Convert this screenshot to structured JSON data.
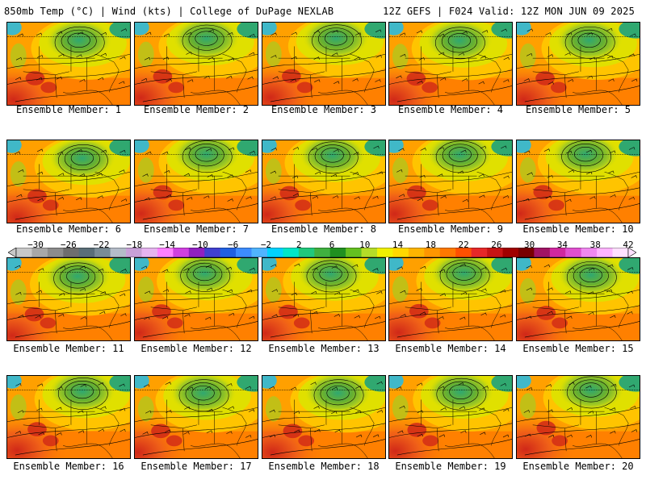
{
  "header": {
    "title_left": "850mb Temp (°C) | Wind (kts) | College of DuPage NEXLAB",
    "title_right": "12Z GEFS | F024 Valid: 12Z MON JUN 09 2025"
  },
  "member_label_prefix": "Ensemble Member: ",
  "members": [
    1,
    2,
    3,
    4,
    5,
    6,
    7,
    8,
    9,
    10,
    11,
    12,
    13,
    14,
    15,
    16,
    17,
    18,
    19,
    20
  ],
  "colorbar": {
    "tick_labels": [
      "−30",
      "−26",
      "−22",
      "−18",
      "−14",
      "−10",
      "−6",
      "−2",
      "2",
      "6",
      "10",
      "14",
      "18",
      "22",
      "26",
      "30",
      "34",
      "38",
      "42"
    ],
    "colors": [
      "#c8c8c8",
      "#a8a8a8",
      "#8c8c8c",
      "#6e6e6e",
      "#5a6e78",
      "#7a8c96",
      "#b4bcc8",
      "#c8a0d8",
      "#e6b4f0",
      "#ff80ff",
      "#d040e0",
      "#9020c0",
      "#4040d0",
      "#2060e0",
      "#3c8cff",
      "#50b4ff",
      "#00d2ff",
      "#00e6c8",
      "#20c87c",
      "#40b040",
      "#209020",
      "#64c020",
      "#b4dc28",
      "#f0f000",
      "#ffd800",
      "#ffb400",
      "#ff9600",
      "#ff7800",
      "#ff5000",
      "#e62828",
      "#c81414",
      "#a00000",
      "#780000",
      "#a01464",
      "#d028a0",
      "#e050d0",
      "#f088f0",
      "#ffb4ff",
      "#ffe0ff"
    ],
    "scheme": [
      "#40b8c8",
      "#30a870",
      "#68b030",
      "#a8cc20",
      "#e0e000",
      "#ffc800",
      "#ffa000",
      "#ff8000",
      "#f06018",
      "#e03020",
      "#d02818"
    ]
  }
}
